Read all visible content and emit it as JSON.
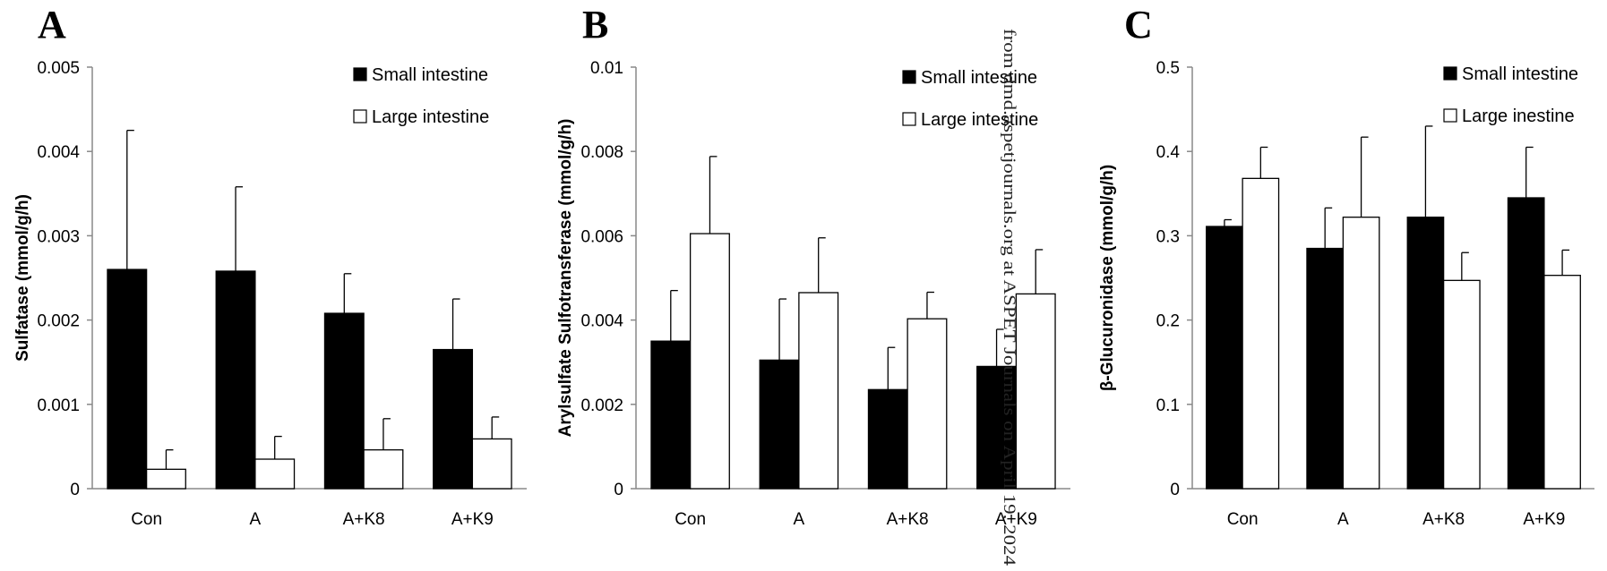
{
  "watermark": "from dmd.aspetjournals.org at ASPET Journals on April 19, 2024",
  "colors": {
    "small": "#000000",
    "large": "#ffffff",
    "outline": "#000000"
  },
  "chart_data": [
    {
      "type": "bar",
      "panel": "A",
      "title": "",
      "xlabel": "",
      "ylabel": "Sulfatase (mmol/g/h)",
      "ylim": [
        0,
        0.005
      ],
      "yticks": [
        "0",
        "0.001",
        "0.002",
        "0.003",
        "0.004",
        "0.005"
      ],
      "categories": [
        "Con",
        "A",
        "A+K8",
        "A+K9"
      ],
      "legend_position": "top-right",
      "series": [
        {
          "name": "Small intestine",
          "color": "#000000",
          "values": [
            0.0026,
            0.00258,
            0.00208,
            0.00165
          ],
          "errors": [
            0.00165,
            0.001,
            0.00047,
            0.0006
          ]
        },
        {
          "name": "Large intestine",
          "color": "#ffffff",
          "values": [
            0.00023,
            0.00035,
            0.00046,
            0.00059
          ],
          "errors": [
            0.00023,
            0.00027,
            0.00037,
            0.00026
          ]
        }
      ]
    },
    {
      "type": "bar",
      "panel": "B",
      "title": "",
      "xlabel": "",
      "ylabel": "Arylsulfate Sulfotransferase (mmol/g/h)",
      "ylim": [
        0,
        0.01
      ],
      "yticks": [
        "0",
        "0.002",
        "0.004",
        "0.006",
        "0.008",
        "0.01"
      ],
      "categories": [
        "Con",
        "A",
        "A+K8",
        "A+K9"
      ],
      "legend_position": "top-right",
      "series": [
        {
          "name": "Small intestine",
          "color": "#000000",
          "values": [
            0.0035,
            0.00305,
            0.00235,
            0.0029
          ],
          "errors": [
            0.0012,
            0.00145,
            0.001,
            0.00088
          ]
        },
        {
          "name": "Large intestine",
          "color": "#ffffff",
          "values": [
            0.00605,
            0.00465,
            0.00403,
            0.00462
          ],
          "errors": [
            0.00183,
            0.0013,
            0.00063,
            0.00105
          ]
        }
      ]
    },
    {
      "type": "bar",
      "panel": "C",
      "title": "",
      "xlabel": "",
      "ylabel": "β-Glucuronidase (mmol/g/h)",
      "ylim": [
        0,
        0.5
      ],
      "yticks": [
        "0",
        "0.1",
        "0.2",
        "0.3",
        "0.4",
        "0.5"
      ],
      "categories": [
        "Con",
        "A",
        "A+K8",
        "A+K9"
      ],
      "legend_position": "top-right",
      "series": [
        {
          "name": "Small intestine",
          "color": "#000000",
          "values": [
            0.311,
            0.285,
            0.322,
            0.345
          ],
          "errors": [
            0.008,
            0.048,
            0.108,
            0.06
          ]
        },
        {
          "name": "Large inestine",
          "color": "#ffffff",
          "values": [
            0.368,
            0.322,
            0.247,
            0.253
          ],
          "errors": [
            0.037,
            0.095,
            0.033,
            0.03
          ]
        }
      ]
    }
  ]
}
